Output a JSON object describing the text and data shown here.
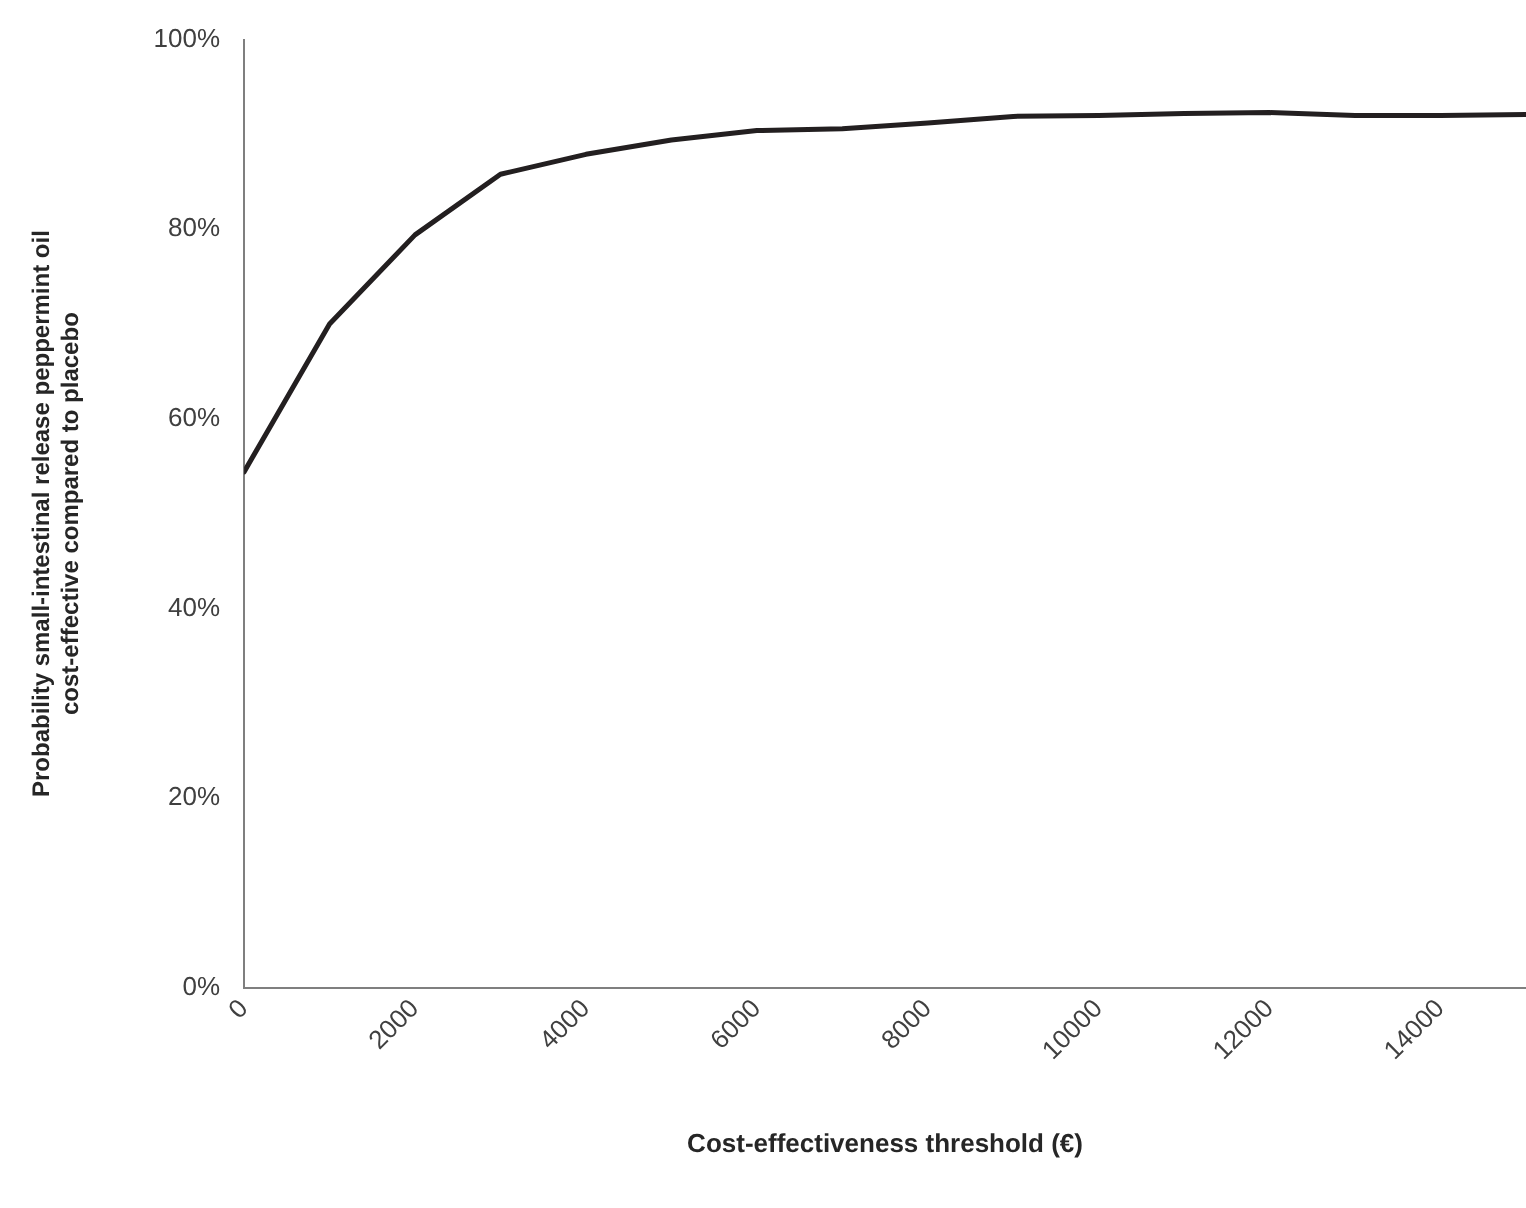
{
  "chart_data": {
    "type": "line",
    "xlabel": "Cost-effectiveness threshold (€)",
    "ylabel": "Probability small-intestinal release peppermint oil\ncost-effective compared to placebo",
    "x": [
      0,
      1000,
      2000,
      3000,
      4000,
      5000,
      6000,
      7000,
      8000,
      9000,
      10000,
      11000,
      12000,
      13000,
      14000,
      15000
    ],
    "series": [
      {
        "color": "#231f20",
        "values": [
          54.4,
          70.0,
          79.4,
          85.8,
          87.9,
          89.4,
          90.4,
          90.6,
          91.2,
          91.9,
          92.0,
          92.2,
          92.3,
          92.0,
          92.0,
          92.1
        ]
      }
    ],
    "xlim": [
      0,
      15000
    ],
    "xticks": [
      0,
      2000,
      4000,
      6000,
      8000,
      10000,
      12000,
      14000
    ],
    "ylim": [
      0,
      100
    ],
    "yticks": [
      {
        "value": 0,
        "label": "0%"
      },
      {
        "value": 20,
        "label": "20%"
      },
      {
        "value": 40,
        "label": "40%"
      },
      {
        "value": 60,
        "label": "60%"
      },
      {
        "value": 80,
        "label": "80%"
      },
      {
        "value": 100,
        "label": "100%"
      }
    ],
    "grid": false,
    "legend": false,
    "marker": "none",
    "line_style": "solid"
  }
}
